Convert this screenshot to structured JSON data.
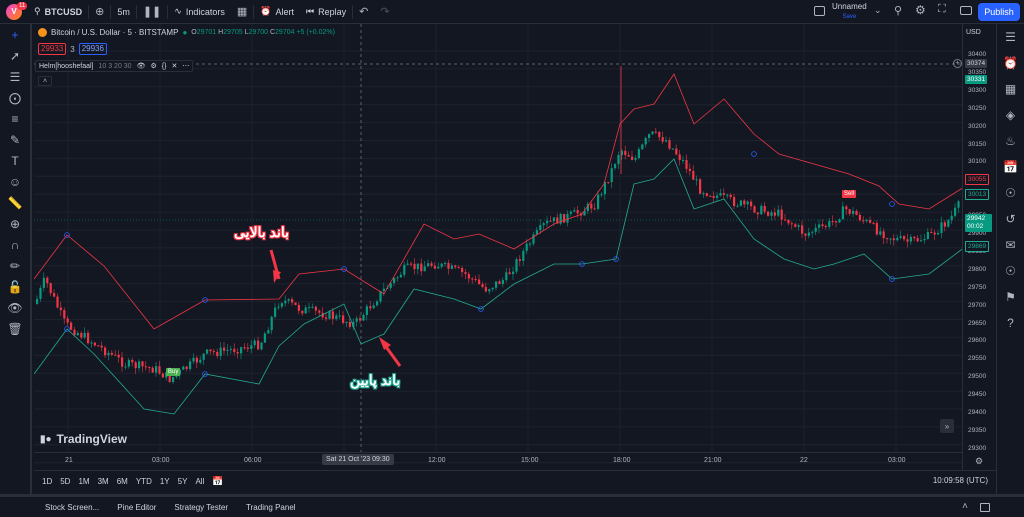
{
  "topbar": {
    "notification_count": "11",
    "symbol": "BTCUSD",
    "interval": "5m",
    "indicators_label": "Indicators",
    "alert_label": "Alert",
    "replay_label": "Replay",
    "layout_name": "Unnamed",
    "layout_status": "Save",
    "publish_label": "Publish"
  },
  "legend": {
    "title": "Bitcoin / U.S. Dollar · 5 · BITSTAMP",
    "o_label": "O",
    "o": "29701",
    "h_label": "H",
    "h": "29705",
    "l_label": "L",
    "l": "29700",
    "c_label": "C",
    "c": "29704",
    "change": "+5 (+0.02%)",
    "sell_price": "29933",
    "spread": "3",
    "buy_price": "29936"
  },
  "indicator": {
    "name": "Helm[hooshefaal]",
    "params": "10 3 20 30"
  },
  "price_scale": {
    "currency": "USD",
    "labels": [
      "30400",
      "30350",
      "30300",
      "30250",
      "30200",
      "30150",
      "30100",
      "30050",
      "30000",
      "29950",
      "29900",
      "29850",
      "29800",
      "29750",
      "29700",
      "29650",
      "29600",
      "29550",
      "29500",
      "29450",
      "29400",
      "29350",
      "29300"
    ],
    "crosshair_price": "30374",
    "tag_upper_green": "30331",
    "tag_upper_red": "30055",
    "tag_mid_green": "30013",
    "last_price": "29942",
    "countdown": "00:02",
    "tag_lower_green": "29869"
  },
  "time_scale": {
    "labels": [
      "21",
      "03:00",
      "06:00",
      "12:00",
      "15:00",
      "18:00",
      "21:00",
      "22",
      "03:00"
    ],
    "crosshair_time": "Sat 21 Oct '23   09:30"
  },
  "annotations": {
    "upper_band": "باند بالایی",
    "lower_band": "باند پایین",
    "buy": "Buy",
    "sell": "Sell"
  },
  "watermark": "TradingView",
  "range_bar": {
    "ranges": [
      "1D",
      "5D",
      "1M",
      "3M",
      "6M",
      "YTD",
      "1Y",
      "5Y",
      "All"
    ],
    "clock": "10:09:58 (UTC)"
  },
  "bottom_panel": {
    "tabs": [
      "Stock Screen...",
      "Pine Editor",
      "Strategy Tester",
      "Trading Panel"
    ]
  },
  "colors": {
    "background": "#131722",
    "bullish": "#089981",
    "bearish": "#f23645",
    "upper_band": "#f23645",
    "lower_band": "#22ab94",
    "accent": "#2962ff"
  }
}
